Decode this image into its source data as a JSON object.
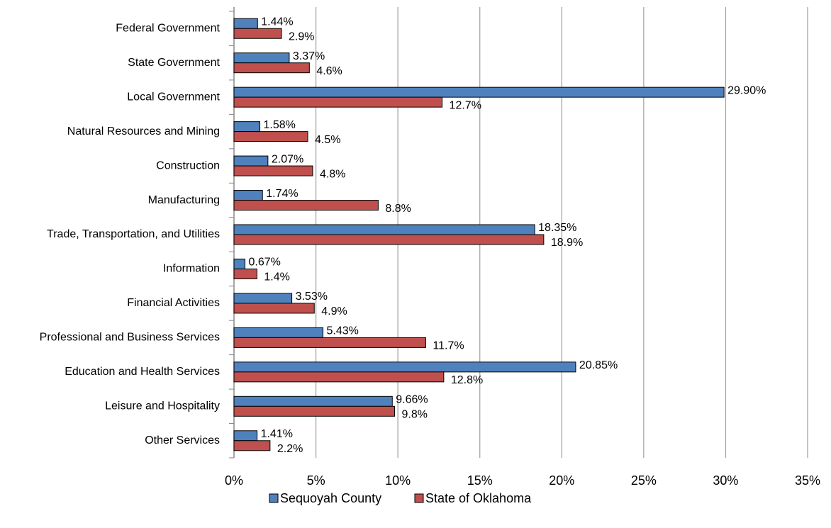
{
  "chart_data": {
    "type": "bar",
    "orientation": "horizontal",
    "categories": [
      "Federal Government",
      "State Government",
      "Local Government",
      "Natural Resources and Mining",
      "Construction",
      "Manufacturing",
      "Trade, Transportation, and Utilities",
      "Information",
      "Financial Activities",
      "Professional and Business Services",
      "Education and Health Services",
      "Leisure and Hospitality",
      "Other Services"
    ],
    "series": [
      {
        "name": "Sequoyah County",
        "color": "#4f81bd",
        "values": [
          1.44,
          3.37,
          29.9,
          1.58,
          2.07,
          1.74,
          18.35,
          0.67,
          3.53,
          5.43,
          20.85,
          9.66,
          1.41
        ],
        "value_labels": [
          "1.44%",
          "3.37%",
          "29.90%",
          "1.58%",
          "2.07%",
          "1.74%",
          "18.35%",
          "0.67%",
          "3.53%",
          "5.43%",
          "20.85%",
          "9.66%",
          "1.41%"
        ]
      },
      {
        "name": "State of Oklahoma",
        "color": "#c0504d",
        "values": [
          2.9,
          4.6,
          12.7,
          4.5,
          4.8,
          8.8,
          18.9,
          1.4,
          4.9,
          11.7,
          12.8,
          9.8,
          2.2
        ],
        "value_labels": [
          "2.9%",
          "4.6%",
          "12.7%",
          "4.5%",
          "4.8%",
          "8.8%",
          "18.9%",
          "1.4%",
          "4.9%",
          "11.7%",
          "12.8%",
          "9.8%",
          "2.2%"
        ]
      }
    ],
    "xlim": [
      0,
      35
    ],
    "xticks": [
      {
        "value": 0,
        "label": "0%"
      },
      {
        "value": 5,
        "label": "5%"
      },
      {
        "value": 10,
        "label": "10%"
      },
      {
        "value": 15,
        "label": "15%"
      },
      {
        "value": 20,
        "label": "20%"
      },
      {
        "value": 25,
        "label": "25%"
      },
      {
        "value": 30,
        "label": "30%"
      },
      {
        "value": 35,
        "label": "35%"
      }
    ],
    "grid": true,
    "legend": "bottom"
  }
}
